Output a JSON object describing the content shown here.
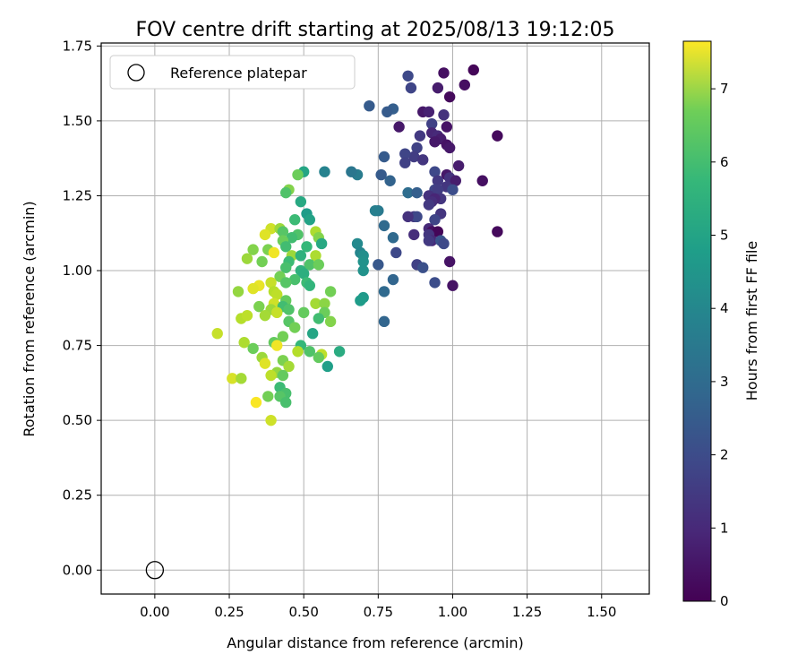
{
  "chart_data": {
    "type": "scatter",
    "title": "FOV centre drift starting at 2025/08/13 19:12:05",
    "xlabel": "Angular distance from reference (arcmin)",
    "ylabel": "Rotation from reference (arcmin)",
    "xlim": [
      -0.18,
      1.66
    ],
    "ylim": [
      -0.08,
      1.76
    ],
    "xticks": [
      "0.00",
      "0.25",
      "0.50",
      "0.75",
      "1.00",
      "1.25",
      "1.50"
    ],
    "yticks": [
      "0.00",
      "0.25",
      "0.50",
      "0.75",
      "1.00",
      "1.25",
      "1.50",
      "1.75"
    ],
    "grid": true,
    "legend": {
      "placement": "top-left",
      "entries": [
        "Reference platepar"
      ]
    },
    "reference_point": {
      "x": 0.0,
      "y": 0.0
    },
    "colorbar": {
      "label": "Hours from first FF file",
      "colormap": "viridis",
      "range": [
        0,
        7.65
      ],
      "ticks": [
        "0",
        "1",
        "2",
        "3",
        "4",
        "5",
        "6",
        "7"
      ]
    },
    "points": [
      [
        1.07,
        1.67,
        0.1
      ],
      [
        0.97,
        1.66,
        0.3
      ],
      [
        0.85,
        1.65,
        1.7
      ],
      [
        1.04,
        1.62,
        0.3
      ],
      [
        0.86,
        1.61,
        1.6
      ],
      [
        0.95,
        1.61,
        0.6
      ],
      [
        0.99,
        1.58,
        0.2
      ],
      [
        0.72,
        1.55,
        2.2
      ],
      [
        0.8,
        1.54,
        2.3
      ],
      [
        0.78,
        1.53,
        2.2
      ],
      [
        0.9,
        1.53,
        0.5
      ],
      [
        0.92,
        1.53,
        0.7
      ],
      [
        0.97,
        1.52,
        1.1
      ],
      [
        0.93,
        1.49,
        1.5
      ],
      [
        0.82,
        1.48,
        0.5
      ],
      [
        0.98,
        1.48,
        0.4
      ],
      [
        0.93,
        1.46,
        0.8
      ],
      [
        0.95,
        1.45,
        0.9
      ],
      [
        0.89,
        1.45,
        1.3
      ],
      [
        1.15,
        1.45,
        0.2
      ],
      [
        0.96,
        1.44,
        0.6
      ],
      [
        0.94,
        1.43,
        0.5
      ],
      [
        0.98,
        1.42,
        0.4
      ],
      [
        0.99,
        1.41,
        0.5
      ],
      [
        0.88,
        1.41,
        1.5
      ],
      [
        0.87,
        1.38,
        1.4
      ],
      [
        0.84,
        1.39,
        1.6
      ],
      [
        0.77,
        1.38,
        2.2
      ],
      [
        0.9,
        1.37,
        1.2
      ],
      [
        0.84,
        1.36,
        1.5
      ],
      [
        1.02,
        1.35,
        0.6
      ],
      [
        0.94,
        1.33,
        1.7
      ],
      [
        0.98,
        1.32,
        0.5
      ],
      [
        0.99,
        1.31,
        1.1
      ],
      [
        0.76,
        1.32,
        2.2
      ],
      [
        0.79,
        1.3,
        2.4
      ],
      [
        0.95,
        1.3,
        1.3
      ],
      [
        1.01,
        1.3,
        0.6
      ],
      [
        0.68,
        1.32,
        3.2
      ],
      [
        0.66,
        1.33,
        3.0
      ],
      [
        1.1,
        1.3,
        0.3
      ],
      [
        0.98,
        1.28,
        1.2
      ],
      [
        1.0,
        1.27,
        1.8
      ],
      [
        0.94,
        1.27,
        1.6
      ],
      [
        0.95,
        1.27,
        1.4
      ],
      [
        0.85,
        1.26,
        2.7
      ],
      [
        0.92,
        1.25,
        1.1
      ],
      [
        0.96,
        1.24,
        1.2
      ],
      [
        0.88,
        1.26,
        2.3
      ],
      [
        0.94,
        1.24,
        0.8
      ],
      [
        0.93,
        1.23,
        1.0
      ],
      [
        0.92,
        1.22,
        1.3
      ],
      [
        0.75,
        1.2,
        3.1
      ],
      [
        0.74,
        1.2,
        3.3
      ],
      [
        0.96,
        1.19,
        1.2
      ],
      [
        0.87,
        1.18,
        1.3
      ],
      [
        0.88,
        1.18,
        1.7
      ],
      [
        0.85,
        1.18,
        1.1
      ],
      [
        0.94,
        1.17,
        1.6
      ],
      [
        0.77,
        1.15,
        2.6
      ],
      [
        0.92,
        1.14,
        0.9
      ],
      [
        0.93,
        1.13,
        0.3
      ],
      [
        0.95,
        1.13,
        0.1
      ],
      [
        1.15,
        1.13,
        0.2
      ],
      [
        0.92,
        1.12,
        1.2
      ],
      [
        0.87,
        1.12,
        1.0
      ],
      [
        0.8,
        1.11,
        2.6
      ],
      [
        0.93,
        1.1,
        0.9
      ],
      [
        0.96,
        1.1,
        2.0
      ],
      [
        0.97,
        1.09,
        1.7
      ],
      [
        0.68,
        1.09,
        3.6
      ],
      [
        0.92,
        1.1,
        1.3
      ],
      [
        0.69,
        1.06,
        3.5
      ],
      [
        0.7,
        1.05,
        3.8
      ],
      [
        0.81,
        1.06,
        1.7
      ],
      [
        0.7,
        1.03,
        3.9
      ],
      [
        0.99,
        1.03,
        0.4
      ],
      [
        0.75,
        1.02,
        2.1
      ],
      [
        0.88,
        1.02,
        1.5
      ],
      [
        0.9,
        1.01,
        1.9
      ],
      [
        0.7,
        1.0,
        3.9
      ],
      [
        0.8,
        0.97,
        2.5
      ],
      [
        0.94,
        0.96,
        1.8
      ],
      [
        1.0,
        0.95,
        0.4
      ],
      [
        0.77,
        0.93,
        2.6
      ],
      [
        0.7,
        0.91,
        4.1
      ],
      [
        0.69,
        0.9,
        4.2
      ],
      [
        0.77,
        0.83,
        2.5
      ],
      [
        0.57,
        1.33,
        3.4
      ],
      [
        0.5,
        1.33,
        4.5
      ],
      [
        0.48,
        1.32,
        5.9
      ],
      [
        0.45,
        1.27,
        6.2
      ],
      [
        0.44,
        1.26,
        5.5
      ],
      [
        0.49,
        1.23,
        4.6
      ],
      [
        0.51,
        1.19,
        4.2
      ],
      [
        0.52,
        1.17,
        4.4
      ],
      [
        0.47,
        1.17,
        5.2
      ],
      [
        0.39,
        1.14,
        7.1
      ],
      [
        0.42,
        1.14,
        6.5
      ],
      [
        0.43,
        1.13,
        5.6
      ],
      [
        0.37,
        1.12,
        7.3
      ],
      [
        0.54,
        1.13,
        6.7
      ],
      [
        0.48,
        1.12,
        5.5
      ],
      [
        0.46,
        1.11,
        5.3
      ],
      [
        0.43,
        1.1,
        5.9
      ],
      [
        0.55,
        1.11,
        6.2
      ],
      [
        0.56,
        1.09,
        4.6
      ],
      [
        0.51,
        1.08,
        5.1
      ],
      [
        0.44,
        1.08,
        5.3
      ],
      [
        0.38,
        1.07,
        6.1
      ],
      [
        0.33,
        1.07,
        6.2
      ],
      [
        0.4,
        1.06,
        7.5
      ],
      [
        0.46,
        1.05,
        6.5
      ],
      [
        0.49,
        1.05,
        4.9
      ],
      [
        0.54,
        1.05,
        6.7
      ],
      [
        0.31,
        1.04,
        6.5
      ],
      [
        0.36,
        1.03,
        6.0
      ],
      [
        0.45,
        1.03,
        5.2
      ],
      [
        0.52,
        1.02,
        5.5
      ],
      [
        0.55,
        1.02,
        5.9
      ],
      [
        0.44,
        1.01,
        5.4
      ],
      [
        0.49,
        1.0,
        4.9
      ],
      [
        0.5,
        0.99,
        4.8
      ],
      [
        0.42,
        0.98,
        6.0
      ],
      [
        0.47,
        0.97,
        5.4
      ],
      [
        0.44,
        0.96,
        5.6
      ],
      [
        0.39,
        0.96,
        7.0
      ],
      [
        0.51,
        0.96,
        5.2
      ],
      [
        0.52,
        0.95,
        5.0
      ],
      [
        0.35,
        0.95,
        7.4
      ],
      [
        0.33,
        0.94,
        7.3
      ],
      [
        0.4,
        0.93,
        6.8
      ],
      [
        0.59,
        0.93,
        6.0
      ],
      [
        0.28,
        0.93,
        6.4
      ],
      [
        0.41,
        0.92,
        6.9
      ],
      [
        0.44,
        0.9,
        5.8
      ],
      [
        0.54,
        0.89,
        6.6
      ],
      [
        0.57,
        0.89,
        6.3
      ],
      [
        0.4,
        0.89,
        7.1
      ],
      [
        0.43,
        0.88,
        5.3
      ],
      [
        0.35,
        0.88,
        6.1
      ],
      [
        0.45,
        0.87,
        5.5
      ],
      [
        0.39,
        0.87,
        6.5
      ],
      [
        0.41,
        0.86,
        7.0
      ],
      [
        0.57,
        0.86,
        5.9
      ],
      [
        0.29,
        0.84,
        6.8
      ],
      [
        0.31,
        0.85,
        6.9
      ],
      [
        0.37,
        0.85,
        6.6
      ],
      [
        0.45,
        0.83,
        5.6
      ],
      [
        0.5,
        0.86,
        5.8
      ],
      [
        0.55,
        0.84,
        5.3
      ],
      [
        0.59,
        0.83,
        6.2
      ],
      [
        0.47,
        0.81,
        6.0
      ],
      [
        0.53,
        0.79,
        4.5
      ],
      [
        0.21,
        0.79,
        7.0
      ],
      [
        0.43,
        0.78,
        6.0
      ],
      [
        0.3,
        0.76,
        6.7
      ],
      [
        0.4,
        0.76,
        5.8
      ],
      [
        0.41,
        0.75,
        7.5
      ],
      [
        0.33,
        0.74,
        5.9
      ],
      [
        0.49,
        0.75,
        5.1
      ],
      [
        0.52,
        0.73,
        5.5
      ],
      [
        0.56,
        0.72,
        6.9
      ],
      [
        0.62,
        0.73,
        4.7
      ],
      [
        0.48,
        0.73,
        6.8
      ],
      [
        0.36,
        0.71,
        6.5
      ],
      [
        0.43,
        0.7,
        6.1
      ],
      [
        0.55,
        0.71,
        5.8
      ],
      [
        0.58,
        0.68,
        4.3
      ],
      [
        0.45,
        0.68,
        6.6
      ],
      [
        0.37,
        0.69,
        7.3
      ],
      [
        0.41,
        0.66,
        6.4
      ],
      [
        0.43,
        0.65,
        5.8
      ],
      [
        0.39,
        0.65,
        6.9
      ],
      [
        0.26,
        0.64,
        7.2
      ],
      [
        0.29,
        0.64,
        6.6
      ],
      [
        0.42,
        0.61,
        5.2
      ],
      [
        0.44,
        0.59,
        5.4
      ],
      [
        0.38,
        0.58,
        6.0
      ],
      [
        0.42,
        0.58,
        5.6
      ],
      [
        0.44,
        0.56,
        5.4
      ],
      [
        0.34,
        0.56,
        7.6
      ],
      [
        0.39,
        0.5,
        7.1
      ]
    ]
  }
}
